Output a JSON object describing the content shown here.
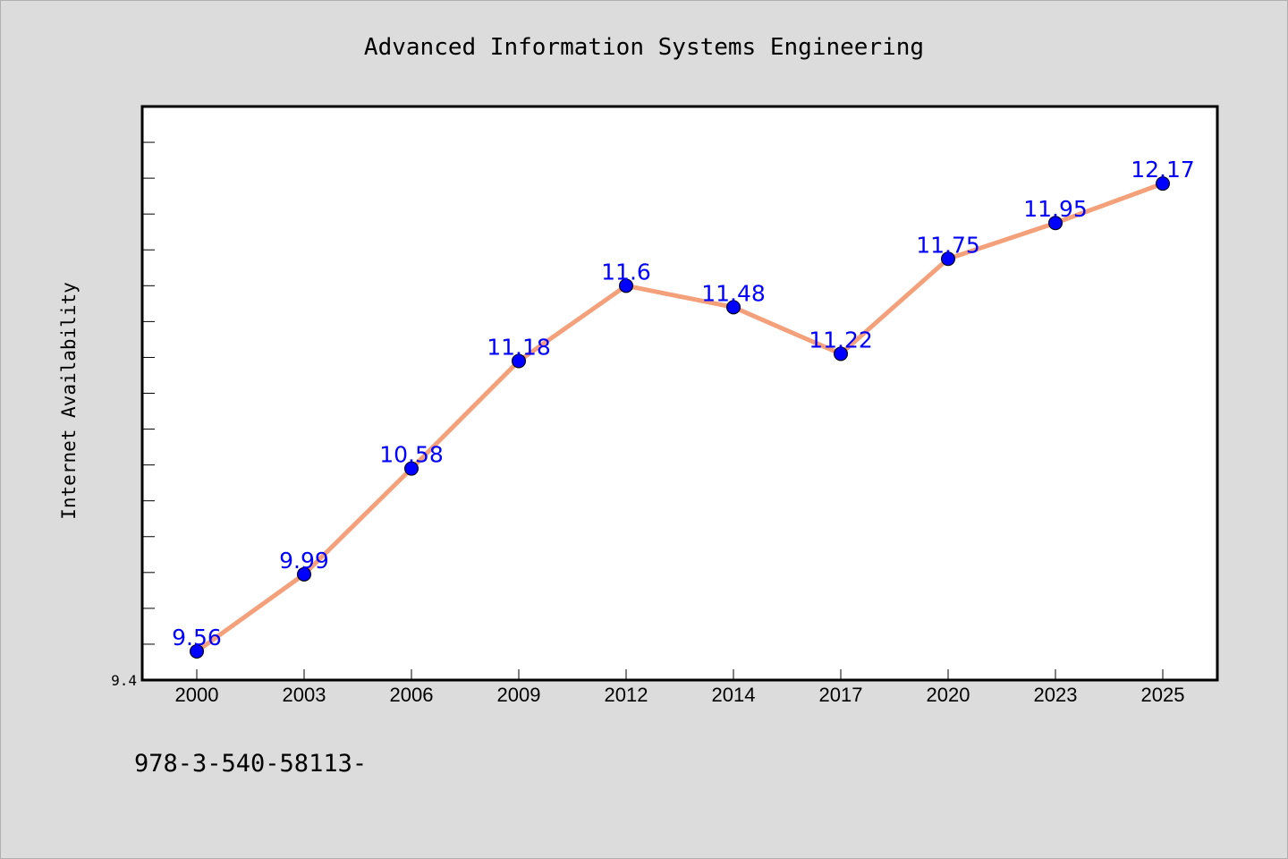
{
  "chart_data": {
    "type": "line",
    "title": "Advanced Information Systems Engineering",
    "ylabel": "Internet Availability",
    "xlabel": "",
    "categories": [
      "2000",
      "2003",
      "2006",
      "2009",
      "2012",
      "2014",
      "2017",
      "2020",
      "2023",
      "2025"
    ],
    "series": [
      {
        "values": [
          9.56,
          9.99,
          10.58,
          11.18,
          11.6,
          11.48,
          11.22,
          11.75,
          11.95,
          12.17
        ],
        "data_labels": [
          "9.56",
          "9.99",
          "10.58",
          "11.18",
          "11.6",
          "11.48",
          "11.22",
          "11.75",
          "11.95",
          "12.17"
        ],
        "line_color": "#f4a07a",
        "marker_color": "#0000ff"
      }
    ],
    "ylim": [
      9.4,
      12.6
    ],
    "ytick_label": "9.4",
    "ytick_step": 0.2,
    "grid": false,
    "legend": "none",
    "background": "#dcdcdc",
    "plot_background": "#ffffff"
  },
  "footer_text": "978-3-540-58113-"
}
